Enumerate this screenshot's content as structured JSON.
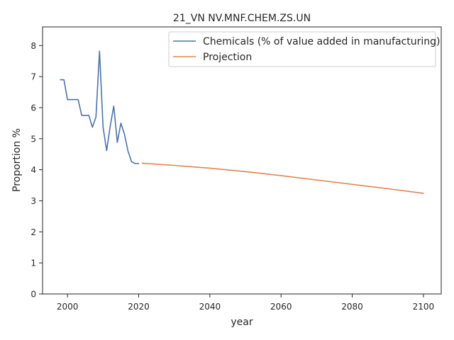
{
  "chart_data": {
    "type": "line",
    "title": "21_VN NV.MNF.CHEM.ZS.UN",
    "xlabel": "year",
    "ylabel": "Proportion %",
    "xlim": [
      1993,
      2105
    ],
    "ylim": [
      0,
      8.6
    ],
    "x_ticks": [
      2000,
      2020,
      2040,
      2060,
      2080,
      2100
    ],
    "y_ticks": [
      0,
      1,
      2,
      3,
      4,
      5,
      6,
      7,
      8
    ],
    "grid": false,
    "legend_position": "top-right",
    "series": [
      {
        "name": "Chemicals (% of value added in manufacturing)",
        "color": "#4c72b0",
        "x": [
          1998,
          1999,
          2000,
          2001,
          2002,
          2003,
          2004,
          2005,
          2006,
          2007,
          2008,
          2009,
          2010,
          2011,
          2012,
          2013,
          2014,
          2015,
          2016,
          2017,
          2018,
          2019,
          2020
        ],
        "y": [
          6.9,
          6.9,
          6.26,
          6.26,
          6.26,
          6.26,
          5.75,
          5.75,
          5.75,
          5.37,
          5.7,
          7.82,
          5.37,
          4.62,
          5.4,
          6.05,
          4.88,
          5.5,
          5.15,
          4.6,
          4.26,
          4.2,
          4.2
        ]
      },
      {
        "name": "Projection",
        "color": "#dd8452",
        "x": [
          2021,
          2030,
          2040,
          2050,
          2060,
          2070,
          2080,
          2090,
          2100
        ],
        "y": [
          4.21,
          4.14,
          4.05,
          3.94,
          3.81,
          3.67,
          3.53,
          3.39,
          3.24
        ]
      }
    ]
  }
}
